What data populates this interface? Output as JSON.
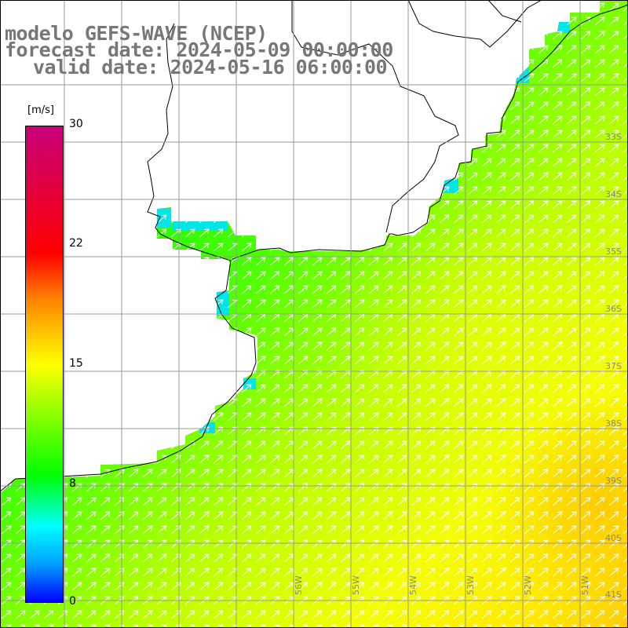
{
  "title": {
    "line1": "modelo GEFS-WAVE (NCEP)",
    "line2": "forecast date: 2024-05-09 00:00:00",
    "line3": "valid date: 2024-05-16 06:00:00"
  },
  "colorbar": {
    "unit": "[m/s]",
    "ticks": [
      "30",
      "22",
      "15",
      "8",
      "0"
    ],
    "colors": [
      "#c8007a",
      "#ff0000",
      "#ff7f00",
      "#ffff00",
      "#00ff00",
      "#00ffff",
      "#0000ff"
    ]
  },
  "map": {
    "lat_labels": [
      "33S",
      "34S",
      "35S",
      "36S",
      "37S",
      "38S",
      "39S",
      "40S",
      "41S"
    ],
    "lon_labels": [
      "56W",
      "55W",
      "54W",
      "53W",
      "52W",
      "51W"
    ],
    "wind_direction": "south-west to north-east",
    "land_color": "#ffffff",
    "grid_color": "#999999"
  }
}
